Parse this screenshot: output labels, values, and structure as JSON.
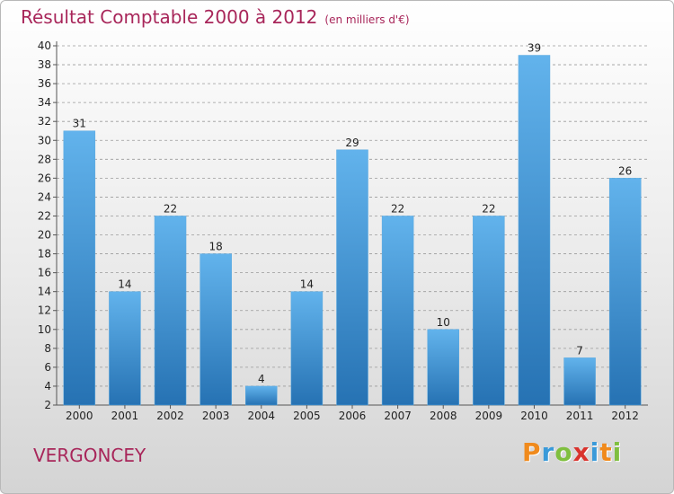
{
  "title": "Résultat Comptable 2000 à 2012",
  "subtitle": "(en milliers d'€)",
  "place": "VERGONCEY",
  "logo": {
    "letters": [
      "P",
      "r",
      "o",
      "x",
      "i",
      "t",
      "i"
    ],
    "colors": [
      "#f08a1c",
      "#3a9ad9",
      "#7fbf3f",
      "#d9332d",
      "#3a9ad9",
      "#f08a1c",
      "#7fbf3f"
    ]
  },
  "colors": {
    "bar_top": "#62b3ec",
    "bar_bottom": "#2672b3",
    "title": "#a8265a"
  },
  "chart_data": {
    "type": "bar",
    "categories": [
      "2000",
      "2001",
      "2002",
      "2003",
      "2004",
      "2005",
      "2006",
      "2007",
      "2008",
      "2009",
      "2010",
      "2011",
      "2012"
    ],
    "values": [
      31,
      14,
      22,
      18,
      4,
      14,
      29,
      22,
      10,
      22,
      39,
      7,
      26
    ],
    "title": "Résultat Comptable 2000 à 2012",
    "ylim": [
      2,
      40
    ],
    "yticks": [
      2,
      4,
      6,
      8,
      10,
      12,
      14,
      16,
      18,
      20,
      22,
      24,
      26,
      28,
      30,
      32,
      34,
      36,
      38,
      40
    ],
    "grid": "horizontal-dashed"
  }
}
